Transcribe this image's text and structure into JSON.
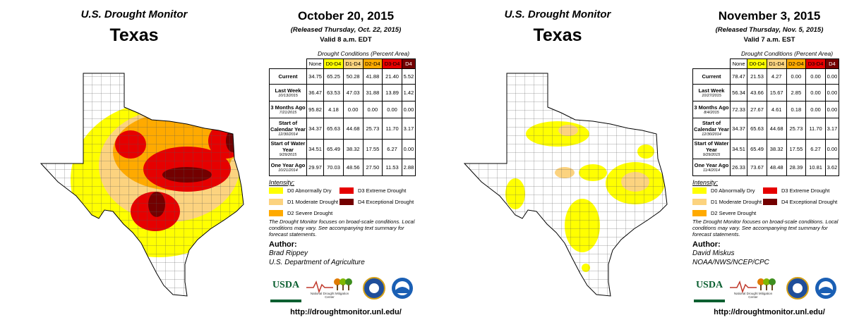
{
  "panels": [
    {
      "monitor": "U.S. Drought Monitor",
      "state": "Texas",
      "date": "October 20, 2015",
      "released": "(Released Thursday, Oct. 22, 2015)",
      "valid": "Valid 8 a.m. EDT",
      "table": {
        "caption": "Drought Conditions (Percent Area)",
        "columns": [
          "None",
          "D0-D4",
          "D1-D4",
          "D2-D4",
          "D3-D4",
          "D4"
        ],
        "rows": [
          {
            "label": "Current",
            "values": [
              "34.75",
              "65.25",
              "50.28",
              "41.88",
              "21.40",
              "5.52"
            ]
          },
          {
            "label": "Last Week",
            "sublabel": "10/13/2015",
            "values": [
              "36.47",
              "63.53",
              "47.03",
              "31.88",
              "13.89",
              "1.42"
            ]
          },
          {
            "label": "3 Months Ago",
            "sublabel": "7/21/2015",
            "values": [
              "95.82",
              "4.18",
              "0.00",
              "0.00",
              "0.00",
              "0.00"
            ]
          },
          {
            "label": "Start of Calendar Year",
            "sublabel": "12/30/2014",
            "values": [
              "34.37",
              "65.63",
              "44.68",
              "25.73",
              "11.70",
              "3.17"
            ]
          },
          {
            "label": "Start of Water Year",
            "sublabel": "9/29/2015",
            "values": [
              "34.51",
              "65.49",
              "38.32",
              "17.55",
              "6.27",
              "0.00"
            ]
          },
          {
            "label": "One Year Ago",
            "sublabel": "10/21/2014",
            "values": [
              "29.97",
              "70.03",
              "48.56",
              "27.50",
              "11.53",
              "2.88"
            ]
          }
        ]
      },
      "intensity": {
        "title": "Intensity:",
        "items": [
          "D0 Abnormally Dry",
          "D1 Moderate Drought",
          "D2 Severe Drought",
          "D3 Extreme Drought",
          "D4 Exceptional Drought"
        ]
      },
      "note": "The Drought Monitor focuses on broad-scale conditions. Local conditions may vary. See accompanying text summary for forecast statements.",
      "author": {
        "title": "Author:",
        "name": "Brad Rippey",
        "org": "U.S. Department of Agriculture"
      },
      "logos": {
        "usda": "USDA",
        "ndmc": "National Drought Mitigation Center"
      },
      "url": "http://droughtmonitor.unl.edu/"
    },
    {
      "monitor": "U.S. Drought Monitor",
      "state": "Texas",
      "date": "November 3, 2015",
      "released": "(Released Thursday, Nov. 5, 2015)",
      "valid": "Valid 7 a.m. EST",
      "table": {
        "caption": "Drought Conditions (Percent Area)",
        "columns": [
          "None",
          "D0-D4",
          "D1-D4",
          "D2-D4",
          "D3-D4",
          "D4"
        ],
        "rows": [
          {
            "label": "Current",
            "values": [
              "78.47",
              "21.53",
              "4.27",
              "0.00",
              "0.00",
              "0.00"
            ]
          },
          {
            "label": "Last Week",
            "sublabel": "10/27/2015",
            "values": [
              "56.34",
              "43.66",
              "15.67",
              "2.85",
              "0.00",
              "0.00"
            ]
          },
          {
            "label": "3 Months Ago",
            "sublabel": "8/4/2015",
            "values": [
              "72.33",
              "27.67",
              "4.61",
              "0.18",
              "0.00",
              "0.00"
            ]
          },
          {
            "label": "Start of Calendar Year",
            "sublabel": "12/30/2014",
            "values": [
              "34.37",
              "65.63",
              "44.68",
              "25.73",
              "11.70",
              "3.17"
            ]
          },
          {
            "label": "Start of Water Year",
            "sublabel": "9/29/2015",
            "values": [
              "34.51",
              "65.49",
              "38.32",
              "17.55",
              "6.27",
              "0.00"
            ]
          },
          {
            "label": "One Year Ago",
            "sublabel": "11/4/2014",
            "values": [
              "26.33",
              "73.67",
              "48.48",
              "28.39",
              "10.81",
              "3.62"
            ]
          }
        ]
      },
      "intensity": {
        "title": "Intensity:",
        "items": [
          "D0 Abnormally Dry",
          "D1 Moderate Drought",
          "D2 Severe Drought",
          "D3 Extreme Drought",
          "D4 Exceptional Drought"
        ]
      },
      "note": "The Drought Monitor focuses on broad-scale conditions. Local conditions may vary. See accompanying text summary for forecast statements.",
      "author": {
        "title": "Author:",
        "name": "David Miskus",
        "org": "NOAA/NWS/NCEP/CPC"
      },
      "logos": {
        "usda": "USDA",
        "ndmc": "National Drought Mitigation Center"
      },
      "url": "http://droughtmonitor.unl.edu/"
    }
  ]
}
